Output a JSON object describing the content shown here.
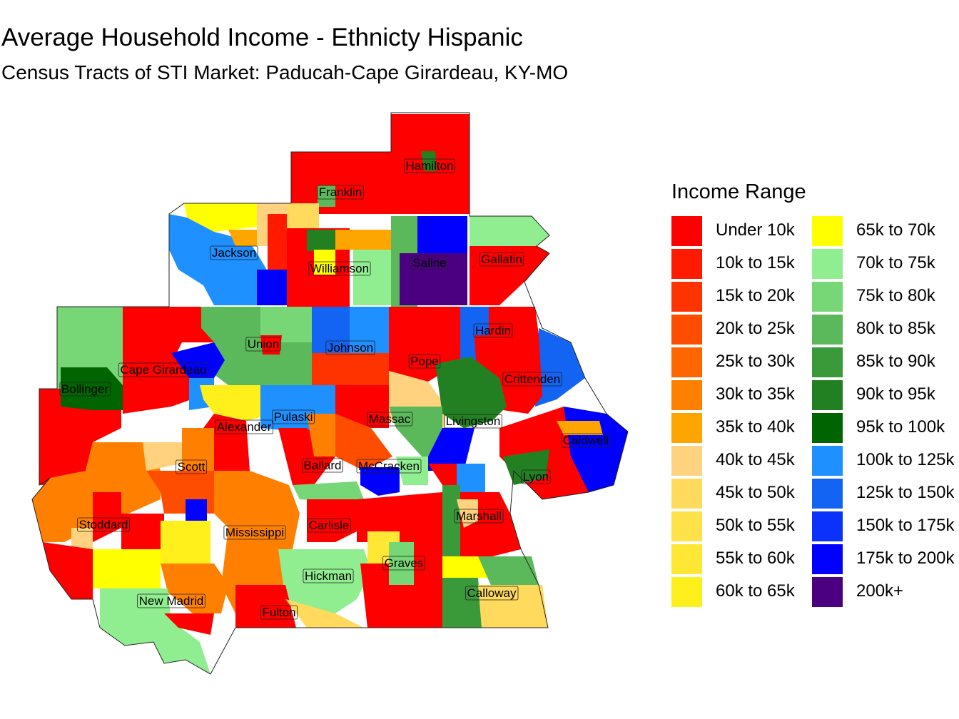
{
  "title": "Average Household Income - Ethnicty Hispanic",
  "subtitle": "Census Tracts of STI Market: Paducah-Cape Girardeau, KY-MO",
  "legend": {
    "title": "Income Range",
    "items": [
      {
        "label": "Under 10k",
        "color": "#FF0000"
      },
      {
        "label": "10k to 15k",
        "color": "#FF1A00"
      },
      {
        "label": "15k to 20k",
        "color": "#FF3300"
      },
      {
        "label": "20k to 25k",
        "color": "#FF4D00"
      },
      {
        "label": "25k to 30k",
        "color": "#FF6600"
      },
      {
        "label": "30k to 35k",
        "color": "#FF8000"
      },
      {
        "label": "35k to 40k",
        "color": "#FFA500"
      },
      {
        "label": "40k to 45k",
        "color": "#FFD27F"
      },
      {
        "label": "45k to 50k",
        "color": "#FFDA5C"
      },
      {
        "label": "50k to 55k",
        "color": "#FFE14A"
      },
      {
        "label": "55k to 60k",
        "color": "#FFE733"
      },
      {
        "label": "60k to 65k",
        "color": "#FFEF1A"
      },
      {
        "label": "65k to 70k",
        "color": "#FFFF00"
      },
      {
        "label": "70k to 75k",
        "color": "#90EE90"
      },
      {
        "label": "75k to 80k",
        "color": "#77D777"
      },
      {
        "label": "80k to 85k",
        "color": "#5BB85B"
      },
      {
        "label": "85k to 90k",
        "color": "#3A9A3A"
      },
      {
        "label": "90k to 95k",
        "color": "#228022"
      },
      {
        "label": "95k to 100k",
        "color": "#006400"
      },
      {
        "label": "100k to 125k",
        "color": "#1E90FF"
      },
      {
        "label": "125k to 150k",
        "color": "#1464F4"
      },
      {
        "label": "150k to 175k",
        "color": "#0A32FA"
      },
      {
        "label": "175k to 200k",
        "color": "#0000FF"
      },
      {
        "label": "200k+",
        "color": "#4B0082"
      }
    ]
  },
  "counties": [
    {
      "name": "Hamilton"
    },
    {
      "name": "Franklin"
    },
    {
      "name": "Jackson"
    },
    {
      "name": "Williamson"
    },
    {
      "name": "Saline"
    },
    {
      "name": "Gallatin"
    },
    {
      "name": "Union"
    },
    {
      "name": "Johnson"
    },
    {
      "name": "Hardin"
    },
    {
      "name": "Cape Girardeau"
    },
    {
      "name": "Pope"
    },
    {
      "name": "Crittenden"
    },
    {
      "name": "Bollinger"
    },
    {
      "name": "Pulaski"
    },
    {
      "name": "Massac"
    },
    {
      "name": "Livingston"
    },
    {
      "name": "Alexander"
    },
    {
      "name": "Caldwell"
    },
    {
      "name": "Scott"
    },
    {
      "name": "Ballard"
    },
    {
      "name": "McCracken"
    },
    {
      "name": "Lyon"
    },
    {
      "name": "Stoddard"
    },
    {
      "name": "Carlisle"
    },
    {
      "name": "Marshall"
    },
    {
      "name": "Mississippi"
    },
    {
      "name": "Graves"
    },
    {
      "name": "Hickman"
    },
    {
      "name": "Calloway"
    },
    {
      "name": "New Madrid"
    },
    {
      "name": "Fulton"
    }
  ]
}
